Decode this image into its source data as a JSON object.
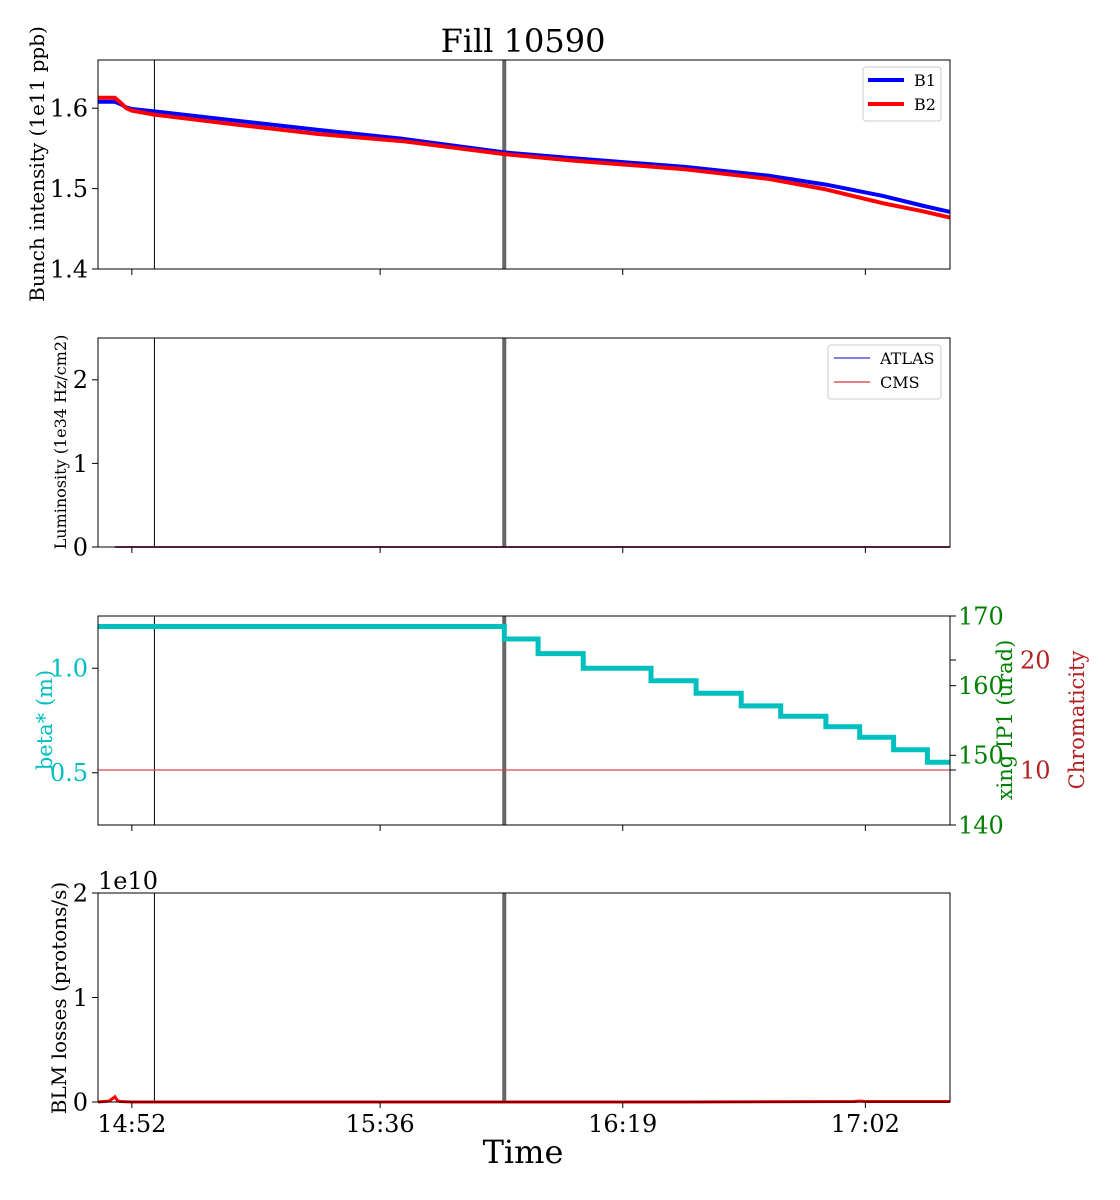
{
  "figure": {
    "title": "Fill 10590",
    "xlabel": "Time",
    "x_tick_labels": [
      "14:52",
      "15:36",
      "16:19",
      "17:02"
    ]
  },
  "colors": {
    "b1": "#0000ff",
    "b2": "#ff0000",
    "atlas": "#0000cc",
    "cms": "#cc0000",
    "beta": "#00bfbf",
    "xing": "#008000",
    "chroma": "#b22222",
    "marker_thin": "#000000",
    "marker_thick": "#666666"
  },
  "chart_data": [
    {
      "id": "intensity",
      "type": "line",
      "ylabel": "Bunch intensity (1e11 ppb)",
      "x_range": [
        "14:46",
        "17:17"
      ],
      "ylim": [
        1.4,
        1.66
      ],
      "yticks": [
        1.4,
        1.5,
        1.6
      ],
      "ytick_labels": [
        "1.4",
        "1.5",
        "1.6"
      ],
      "legend": {
        "position": "top-right",
        "entries": [
          "B1",
          "B2"
        ]
      },
      "vertical_markers": [
        "14:56",
        "15:58"
      ],
      "series": [
        {
          "name": "B1",
          "x": [
            "14:46",
            "14:49",
            "14:50",
            "14:51",
            "14:52",
            "14:56",
            "15:10",
            "15:25",
            "15:40",
            "15:58",
            "16:10",
            "16:30",
            "16:45",
            "16:55",
            "17:05",
            "17:12",
            "17:17"
          ],
          "y": [
            1.608,
            1.608,
            1.605,
            1.601,
            1.599,
            1.596,
            1.585,
            1.573,
            1.562,
            1.545,
            1.538,
            1.527,
            1.516,
            1.505,
            1.491,
            1.479,
            1.471
          ]
        },
        {
          "name": "B2",
          "x": [
            "14:46",
            "14:49",
            "14:50",
            "14:51",
            "14:52",
            "14:56",
            "15:10",
            "15:25",
            "15:40",
            "15:58",
            "16:10",
            "16:30",
            "16:45",
            "16:55",
            "17:05",
            "17:12",
            "17:17"
          ],
          "y": [
            1.613,
            1.613,
            1.607,
            1.6,
            1.597,
            1.592,
            1.58,
            1.568,
            1.559,
            1.543,
            1.535,
            1.524,
            1.512,
            1.499,
            1.482,
            1.472,
            1.464
          ]
        }
      ]
    },
    {
      "id": "luminosity",
      "type": "line",
      "ylabel": "Luminosity (1e34 Hz/cm2)",
      "x_range": [
        "14:46",
        "17:17"
      ],
      "ylim": [
        0,
        2.5
      ],
      "yticks": [
        0,
        1,
        2
      ],
      "ytick_labels": [
        "0",
        "1",
        "2"
      ],
      "legend": {
        "position": "top-right",
        "entries": [
          "ATLAS",
          "CMS"
        ]
      },
      "vertical_markers": [
        "14:56",
        "15:58"
      ],
      "series": [
        {
          "name": "ATLAS",
          "x": [
            "14:49",
            "17:17"
          ],
          "y": [
            0.0,
            0.0
          ]
        },
        {
          "name": "CMS",
          "x": [
            "14:49",
            "17:17"
          ],
          "y": [
            0.0,
            0.0
          ]
        }
      ]
    },
    {
      "id": "optics",
      "type": "line",
      "ylabel": "beta* (m)",
      "ylabel_right": "xing IP1 (urad)",
      "ylabel_right2": "Chromaticity",
      "x_range": [
        "14:46",
        "17:17"
      ],
      "ylim": [
        0.25,
        1.25
      ],
      "yticks": [
        0.5,
        1.0
      ],
      "ytick_labels": [
        "0.5",
        "1.0"
      ],
      "ylim_right": [
        140,
        170
      ],
      "yticks_right": [
        140,
        150,
        160,
        170
      ],
      "ytick_labels_right": [
        "140",
        "150",
        "160",
        "170"
      ],
      "ylim_right2": [
        5,
        24
      ],
      "yticks_right2": [
        10,
        20
      ],
      "ytick_labels_right2": [
        "10",
        "20"
      ],
      "vertical_markers": [
        "14:56",
        "15:58"
      ],
      "series": [
        {
          "name": "beta*",
          "axis": "left",
          "step": true,
          "x": [
            "14:46",
            "15:58",
            "16:04",
            "16:12",
            "16:24",
            "16:32",
            "16:40",
            "16:47",
            "16:55",
            "17:01",
            "17:07",
            "17:13",
            "17:17"
          ],
          "y": [
            1.2,
            1.14,
            1.07,
            1.0,
            0.94,
            0.88,
            0.82,
            0.77,
            0.72,
            0.67,
            0.61,
            0.55,
            0.55
          ]
        },
        {
          "name": "Chromaticity",
          "axis": "right2",
          "x": [
            "14:46",
            "17:17"
          ],
          "y": [
            10,
            10
          ]
        }
      ]
    },
    {
      "id": "blm",
      "type": "line",
      "ylabel": "BLM losses (protons/s)",
      "offset_label": "1e10",
      "x_range": [
        "14:46",
        "17:17"
      ],
      "ylim": [
        0,
        2
      ],
      "yticks": [
        0,
        1,
        2
      ],
      "ytick_labels": [
        "0",
        "1",
        "2"
      ],
      "vertical_markers": [
        "14:56",
        "15:58"
      ],
      "series": [
        {
          "name": "BLM",
          "x": [
            "14:46",
            "14:48",
            "14:49",
            "14:49.5",
            "14:50",
            "14:52",
            "15:30",
            "16:30",
            "17:00",
            "17:01",
            "17:02",
            "17:10",
            "17:17"
          ],
          "y": [
            0.0,
            0.01,
            0.05,
            0.01,
            0.005,
            0.0,
            0.0,
            0.0,
            0.005,
            0.01,
            0.005,
            0.005,
            0.005
          ]
        }
      ]
    }
  ]
}
